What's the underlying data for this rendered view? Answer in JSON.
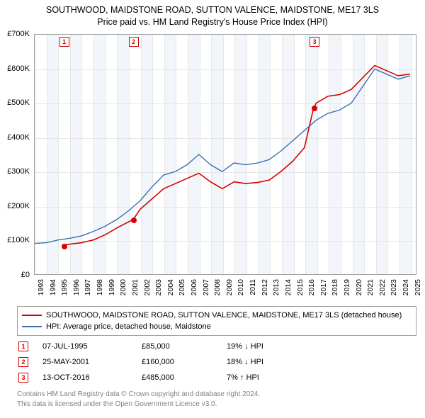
{
  "title": {
    "line1": "SOUTHWOOD, MAIDSTONE ROAD, SUTTON VALENCE, MAIDSTONE, ME17 3LS",
    "line2": "Price paid vs. HM Land Registry's House Price Index (HPI)"
  },
  "chart": {
    "type": "line",
    "background_color": "#ffffff",
    "alt_band_color": "#f2f6fb",
    "grid_color": "#e6e6e6",
    "border_color": "#a0a0a0",
    "x_years": [
      "1993",
      "1994",
      "1995",
      "1996",
      "1997",
      "1998",
      "1999",
      "2000",
      "2001",
      "2002",
      "2003",
      "2004",
      "2005",
      "2006",
      "2007",
      "2008",
      "2009",
      "2010",
      "2011",
      "2012",
      "2013",
      "2014",
      "2015",
      "2016",
      "2017",
      "2018",
      "2019",
      "2020",
      "2021",
      "2022",
      "2023",
      "2024",
      "2025"
    ],
    "xlim": [
      1993,
      2025.5
    ],
    "ylim": [
      0,
      700
    ],
    "yticks": [
      0,
      100,
      200,
      300,
      400,
      500,
      600,
      700
    ],
    "ytick_labels": [
      "£0",
      "£100K",
      "£200K",
      "£300K",
      "£400K",
      "£500K",
      "£600K",
      "£700K"
    ],
    "tick_fontsize": 11,
    "series": [
      {
        "id": "property",
        "color": "#d40202",
        "line_width": 1.6,
        "legend": "SOUTHWOOD, MAIDSTONE ROAD, SUTTON VALENCE, MAIDSTONE, ME17 3LS (detached house)",
        "points": [
          [
            1995.5,
            85
          ],
          [
            1996,
            88
          ],
          [
            1997,
            92
          ],
          [
            1998,
            100
          ],
          [
            1999,
            115
          ],
          [
            2000,
            135
          ],
          [
            2001.4,
            160
          ],
          [
            2002,
            190
          ],
          [
            2003,
            220
          ],
          [
            2004,
            250
          ],
          [
            2005,
            265
          ],
          [
            2006,
            280
          ],
          [
            2007,
            295
          ],
          [
            2008,
            270
          ],
          [
            2009,
            250
          ],
          [
            2010,
            270
          ],
          [
            2011,
            265
          ],
          [
            2012,
            268
          ],
          [
            2013,
            275
          ],
          [
            2014,
            300
          ],
          [
            2015,
            330
          ],
          [
            2016,
            370
          ],
          [
            2016.78,
            485
          ],
          [
            2017,
            500
          ],
          [
            2018,
            520
          ],
          [
            2019,
            525
          ],
          [
            2020,
            540
          ],
          [
            2021,
            575
          ],
          [
            2022,
            610
          ],
          [
            2023,
            595
          ],
          [
            2024,
            580
          ],
          [
            2025,
            585
          ]
        ]
      },
      {
        "id": "hpi",
        "color": "#3a6fb0",
        "line_width": 1.4,
        "legend": "HPI: Average price, detached house, Maidstone",
        "points": [
          [
            1993,
            90
          ],
          [
            1994,
            92
          ],
          [
            1995,
            100
          ],
          [
            1996,
            105
          ],
          [
            1997,
            112
          ],
          [
            1998,
            125
          ],
          [
            1999,
            140
          ],
          [
            2000,
            160
          ],
          [
            2001,
            185
          ],
          [
            2002,
            215
          ],
          [
            2003,
            255
          ],
          [
            2004,
            290
          ],
          [
            2005,
            300
          ],
          [
            2006,
            320
          ],
          [
            2007,
            350
          ],
          [
            2008,
            320
          ],
          [
            2009,
            300
          ],
          [
            2010,
            325
          ],
          [
            2011,
            320
          ],
          [
            2012,
            325
          ],
          [
            2013,
            335
          ],
          [
            2014,
            360
          ],
          [
            2015,
            390
          ],
          [
            2016,
            420
          ],
          [
            2017,
            450
          ],
          [
            2018,
            470
          ],
          [
            2019,
            480
          ],
          [
            2020,
            500
          ],
          [
            2021,
            550
          ],
          [
            2022,
            600
          ],
          [
            2023,
            585
          ],
          [
            2024,
            570
          ],
          [
            2025,
            580
          ]
        ]
      }
    ],
    "sale_markers": [
      {
        "n": "1",
        "year": 1995.5,
        "value": 85,
        "color": "#d40202"
      },
      {
        "n": "2",
        "year": 2001.4,
        "value": 160,
        "color": "#d40202"
      },
      {
        "n": "3",
        "year": 2016.78,
        "value": 485,
        "color": "#d40202"
      }
    ]
  },
  "sales": [
    {
      "n": "1",
      "date": "07-JUL-1995",
      "price": "£85,000",
      "delta": "19% ↓ HPI",
      "color": "#d40202"
    },
    {
      "n": "2",
      "date": "25-MAY-2001",
      "price": "£160,000",
      "delta": "18% ↓ HPI",
      "color": "#d40202"
    },
    {
      "n": "3",
      "date": "13-OCT-2016",
      "price": "£485,000",
      "delta": "7% ↑ HPI",
      "color": "#d40202"
    }
  ],
  "footer": {
    "line1": "Contains HM Land Registry data © Crown copyright and database right 2024.",
    "line2": "This data is licensed under the Open Government Licence v3.0."
  }
}
